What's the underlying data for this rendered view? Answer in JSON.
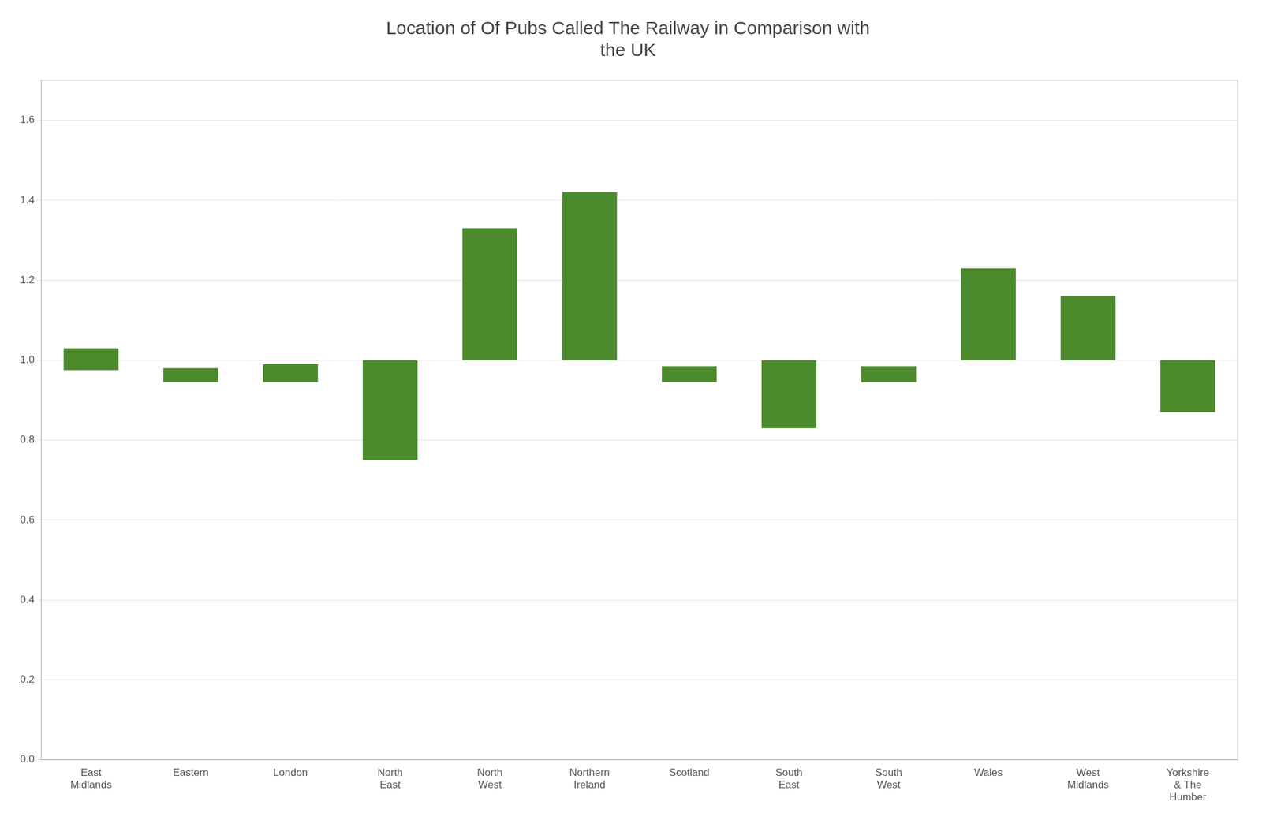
{
  "chart_data": {
    "type": "bar",
    "title": "Location of Of Pubs Called The Railway in Comparison with\nthe UK",
    "categories": [
      "East\nMidlands",
      "Eastern",
      "London",
      "North\nEast",
      "North\nWest",
      "Northern\nIreland",
      "Scotland",
      "South\nEast",
      "South\nWest",
      "Wales",
      "West\nMidlands",
      "Yorkshire\n& The\nHumber"
    ],
    "values": [
      [
        0.975,
        1.03
      ],
      [
        0.945,
        0.98
      ],
      [
        0.945,
        0.99
      ],
      [
        0.75,
        1.0
      ],
      [
        1.0,
        1.33
      ],
      [
        1.0,
        1.42
      ],
      [
        0.945,
        0.985
      ],
      [
        0.83,
        1.0
      ],
      [
        0.945,
        0.985
      ],
      [
        1.0,
        1.23
      ],
      [
        1.0,
        1.16
      ],
      [
        0.87,
        1.0
      ]
    ],
    "color": "#4c8a2e",
    "ylim": [
      0.0,
      1.7
    ],
    "yticks": [
      {
        "value": 0,
        "label": "0.0"
      },
      0.2,
      0.4,
      0.6,
      0.8,
      {
        "value": 1,
        "label": "1.0"
      },
      1.2,
      1.4,
      1.6
    ],
    "grid": true
  }
}
